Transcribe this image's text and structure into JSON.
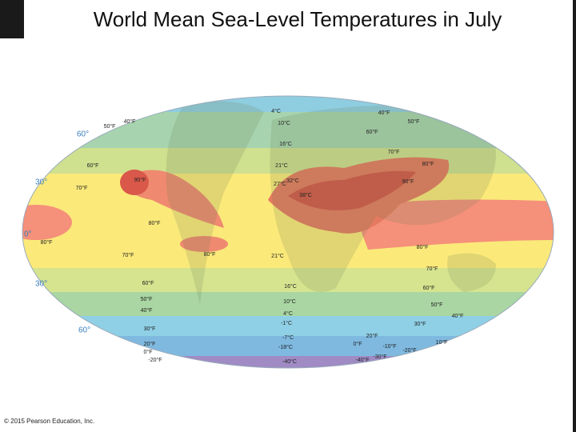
{
  "title": "World Mean Sea-Level Temperatures in July",
  "latitude_labels": [
    "60°",
    "30°",
    "0°",
    "30°",
    "60°"
  ],
  "isotherm_labels": [
    "4°C",
    "40°F",
    "40°F",
    "50°F",
    "10°C",
    "50°F",
    "60°F",
    "16°C",
    "70°F",
    "60°F",
    "21°C",
    "80°F",
    "70°F",
    "27°C",
    "32°C",
    "90°F",
    "38°C",
    "90°F",
    "80°F",
    "80°F",
    "80°F",
    "70°F",
    "80°F",
    "21°C",
    "70°F",
    "60°F",
    "16°C",
    "60°F",
    "50°F",
    "10°C",
    "50°F",
    "40°F",
    "4°C",
    "40°F",
    "-1°C",
    "30°F",
    "30°F",
    "20°F",
    "20°F",
    "-7°C",
    "10°F",
    "0°F",
    "-18°C",
    "0°F",
    "-10°F",
    "-20°F",
    "-20°F",
    "-40°C",
    "-40°F",
    "-30°F"
  ],
  "copyright": "© 2015 Pearson Education, Inc."
}
